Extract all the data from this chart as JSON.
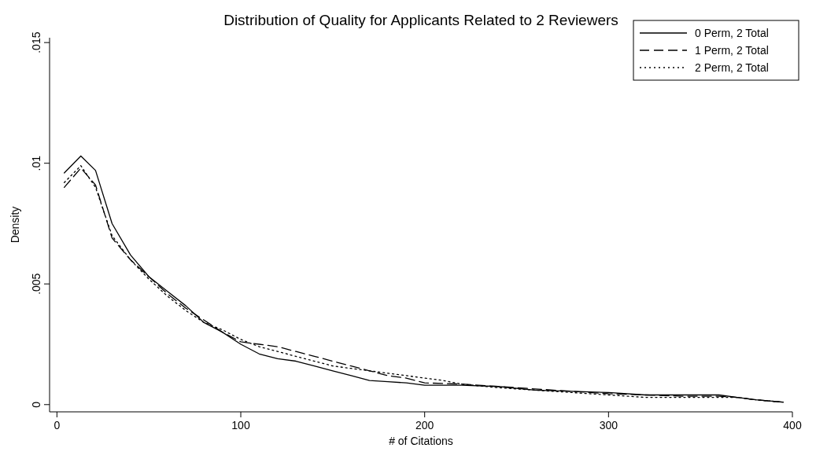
{
  "chart_data": {
    "type": "line",
    "title": "Distribution of Quality for Applicants Related to 2 Reviewers",
    "xlabel": "# of Citations",
    "ylabel": "Density",
    "xlim": [
      -4,
      400
    ],
    "xticks": [
      0,
      100,
      200,
      300,
      400
    ],
    "ylim": [
      -0.0003,
      0.0152
    ],
    "yticks": [
      {
        "value": 0,
        "label": "0"
      },
      {
        "value": 0.005,
        "label": ".005"
      },
      {
        "value": 0.01,
        "label": ".01"
      },
      {
        "value": 0.015,
        "label": ".015"
      }
    ],
    "grid": false,
    "legend": "top right",
    "marker": "none",
    "series": [
      {
        "name": "0 Perm, 2 Total",
        "color": "#000000",
        "line_style": "solid",
        "x": [
          4,
          13,
          21,
          30,
          40,
          50,
          60,
          70,
          80,
          90,
          100,
          110,
          120,
          130,
          140,
          150,
          160,
          170,
          180,
          190,
          200,
          220,
          240,
          260,
          280,
          300,
          320,
          340,
          360,
          370,
          380,
          395
        ],
        "values": [
          0.0096,
          0.0103,
          0.0097,
          0.0075,
          0.0062,
          0.0053,
          0.0047,
          0.0041,
          0.0034,
          0.003,
          0.0025,
          0.0021,
          0.0019,
          0.0018,
          0.0016,
          0.0014,
          0.0012,
          0.001,
          0.00095,
          0.0009,
          0.0008,
          0.0008,
          0.00075,
          0.0006,
          0.00055,
          0.0005,
          0.0004,
          0.0004,
          0.0004,
          0.0003,
          0.0002,
          0.0001
        ]
      },
      {
        "name": "1 Perm, 2 Total",
        "color": "#000000",
        "line_style": "dashed",
        "x": [
          4,
          13,
          21,
          30,
          40,
          50,
          60,
          70,
          80,
          90,
          100,
          110,
          120,
          130,
          140,
          150,
          160,
          170,
          180,
          190,
          200,
          220,
          240,
          260,
          280,
          300,
          320,
          340,
          360,
          370,
          380,
          395
        ],
        "values": [
          0.009,
          0.0098,
          0.0091,
          0.0069,
          0.006,
          0.0053,
          0.0046,
          0.004,
          0.0035,
          0.003,
          0.0026,
          0.0025,
          0.0024,
          0.0022,
          0.002,
          0.0018,
          0.0016,
          0.0014,
          0.0012,
          0.0011,
          0.0009,
          0.00085,
          0.00075,
          0.00065,
          0.00055,
          0.00045,
          0.0004,
          0.00035,
          0.00035,
          0.0003,
          0.0002,
          0.0001
        ]
      },
      {
        "name": "2 Perm, 2 Total",
        "color": "#000000",
        "line_style": "dotted",
        "x": [
          4,
          13,
          21,
          30,
          40,
          50,
          60,
          70,
          80,
          90,
          100,
          110,
          120,
          130,
          140,
          150,
          160,
          170,
          180,
          190,
          200,
          210,
          220,
          240,
          260,
          280,
          300,
          320,
          340,
          360,
          370,
          380,
          395
        ],
        "values": [
          0.0092,
          0.0099,
          0.009,
          0.007,
          0.006,
          0.0052,
          0.0045,
          0.0039,
          0.0034,
          0.0031,
          0.0027,
          0.0024,
          0.0022,
          0.002,
          0.0018,
          0.0016,
          0.0015,
          0.0014,
          0.0013,
          0.0012,
          0.0011,
          0.001,
          0.00085,
          0.0007,
          0.0006,
          0.0005,
          0.0004,
          0.0003,
          0.0003,
          0.0003,
          0.0003,
          0.0002,
          0.0001
        ]
      }
    ]
  }
}
